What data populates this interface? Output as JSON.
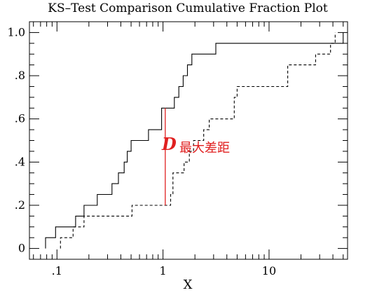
{
  "chart_data": {
    "type": "line",
    "title": "KS–Test Comparison Cumulative Fraction Plot",
    "xlabel": "X",
    "ylabel": "",
    "xscale": "log",
    "xlim": [
      0.055,
      55
    ],
    "ylim": [
      -0.05,
      1.05
    ],
    "x_ticks": [
      {
        "value": 0.1,
        "label": ".1"
      },
      {
        "value": 1,
        "label": "1"
      },
      {
        "value": 10,
        "label": "10"
      }
    ],
    "y_ticks": [
      {
        "value": 0,
        "label": "0"
      },
      {
        "value": 0.2,
        "label": ".2"
      },
      {
        "value": 0.4,
        "label": ".4"
      },
      {
        "value": 0.6,
        "label": ".6"
      },
      {
        "value": 0.8,
        "label": ".8"
      },
      {
        "value": 1.0,
        "label": "1.0"
      }
    ],
    "grid": false,
    "series": [
      {
        "style": "solid",
        "color": "#000000",
        "x": [
          0.078,
          0.078,
          0.097,
          0.097,
          0.15,
          0.15,
          0.18,
          0.18,
          0.24,
          0.24,
          0.33,
          0.33,
          0.38,
          0.38,
          0.43,
          0.43,
          0.46,
          0.46,
          0.5,
          0.5,
          0.73,
          0.73,
          0.97,
          0.97,
          1.28,
          1.28,
          1.41,
          1.41,
          1.55,
          1.55,
          1.7,
          1.7,
          1.87,
          1.87,
          3.15,
          3.15,
          7.0,
          7.0,
          50,
          50
        ],
        "y": [
          0,
          0.05,
          0.05,
          0.1,
          0.1,
          0.15,
          0.15,
          0.2,
          0.2,
          0.25,
          0.25,
          0.3,
          0.3,
          0.35,
          0.35,
          0.4,
          0.4,
          0.45,
          0.45,
          0.5,
          0.5,
          0.55,
          0.55,
          0.65,
          0.65,
          0.7,
          0.7,
          0.75,
          0.75,
          0.8,
          0.8,
          0.85,
          0.85,
          0.9,
          0.9,
          0.95,
          0.95,
          0.95,
          0.95,
          1.0
        ]
      },
      {
        "style": "dashed",
        "color": "#000000",
        "x": [
          0.108,
          0.108,
          0.142,
          0.142,
          0.18,
          0.18,
          0.23,
          0.23,
          0.51,
          0.51,
          0.67,
          0.67,
          1.05,
          1.05,
          1.18,
          1.18,
          1.24,
          1.24,
          1.58,
          1.58,
          1.77,
          1.77,
          1.94,
          1.94,
          2.42,
          2.42,
          2.73,
          2.73,
          4.7,
          4.7,
          5.0,
          5.0,
          15.0,
          15.0,
          27.5,
          27.5,
          38.0,
          38.0,
          42.0,
          42.0
        ],
        "y": [
          0,
          0.05,
          0.05,
          0.1,
          0.1,
          0.15,
          0.15,
          0.15,
          0.15,
          0.2,
          0.2,
          0.2,
          0.2,
          0.2,
          0.2,
          0.25,
          0.25,
          0.35,
          0.35,
          0.4,
          0.4,
          0.45,
          0.45,
          0.5,
          0.5,
          0.55,
          0.55,
          0.6,
          0.6,
          0.7,
          0.7,
          0.75,
          0.75,
          0.85,
          0.85,
          0.9,
          0.9,
          0.95,
          0.95,
          1.0
        ]
      }
    ],
    "annotation": {
      "x": 1.05,
      "y_from": 0.2,
      "y_to": 0.65,
      "color": "#e02020",
      "label_main": "D",
      "label_sub": "最大差距"
    }
  }
}
